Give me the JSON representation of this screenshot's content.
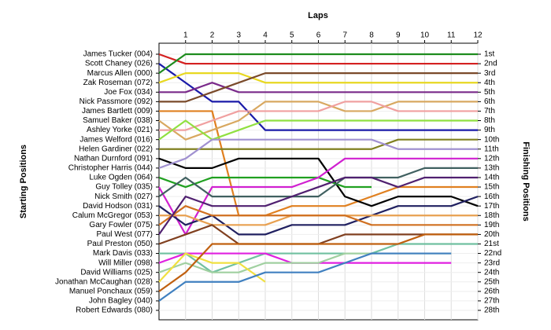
{
  "chart_data": {
    "type": "line",
    "title": "Laps",
    "ylabel": "Starting Positions",
    "y2label": "Finishing Positions",
    "x": [
      0,
      1,
      2,
      3,
      4,
      5,
      6,
      7,
      8,
      9,
      10,
      11,
      12
    ],
    "xlim": [
      0,
      12
    ],
    "xticks": [
      1,
      2,
      3,
      4,
      5,
      6,
      7,
      8,
      9,
      10,
      11,
      12
    ],
    "ylim": [
      1,
      28
    ],
    "grid": true,
    "yticks": [
      {
        "value": 1,
        "label": "1st"
      },
      {
        "value": 2,
        "label": "2nd"
      },
      {
        "value": 3,
        "label": "3rd"
      },
      {
        "value": 4,
        "label": "4th"
      },
      {
        "value": 5,
        "label": "5th"
      },
      {
        "value": 6,
        "label": "6th"
      },
      {
        "value": 7,
        "label": "7th"
      },
      {
        "value": 8,
        "label": "8th"
      },
      {
        "value": 9,
        "label": "9th"
      },
      {
        "value": 10,
        "label": "10th"
      },
      {
        "value": 11,
        "label": "11th"
      },
      {
        "value": 12,
        "label": "12th"
      },
      {
        "value": 13,
        "label": "13th"
      },
      {
        "value": 14,
        "label": "14th"
      },
      {
        "value": 15,
        "label": "15th"
      },
      {
        "value": 16,
        "label": "16th"
      },
      {
        "value": 17,
        "label": "17th"
      },
      {
        "value": 18,
        "label": "18th"
      },
      {
        "value": 19,
        "label": "19th"
      },
      {
        "value": 20,
        "label": "20th"
      },
      {
        "value": 21,
        "label": "21st"
      },
      {
        "value": 22,
        "label": "22nd"
      },
      {
        "value": 23,
        "label": "23rd"
      },
      {
        "value": 24,
        "label": "24th"
      },
      {
        "value": 25,
        "label": "25th"
      },
      {
        "value": 26,
        "label": "26th"
      },
      {
        "value": 27,
        "label": "27th"
      },
      {
        "value": 28,
        "label": "28th"
      }
    ],
    "series": [
      {
        "name": "James Tucker (004)",
        "color": "#d42020",
        "values": [
          1,
          2,
          2,
          2,
          2,
          2,
          2,
          2,
          2,
          2,
          2,
          2,
          2
        ]
      },
      {
        "name": "Scott Chaney (026)",
        "color": "#1a1aa8",
        "values": [
          2,
          4,
          6,
          6,
          9,
          9,
          9,
          9,
          9,
          9,
          9,
          9,
          9
        ]
      },
      {
        "name": "Marcus Allen (000)",
        "color": "#1e8c1e",
        "values": [
          3,
          1,
          1,
          1,
          1,
          1,
          1,
          1,
          1,
          1,
          1,
          1,
          1
        ]
      },
      {
        "name": "Zak Roseman (072)",
        "color": "#e8d820",
        "values": [
          4,
          3,
          3,
          3,
          4,
          4,
          4,
          4,
          4,
          4,
          4,
          4,
          4
        ]
      },
      {
        "name": "Joe Fox (034)",
        "color": "#7a2a8a",
        "values": [
          5,
          5,
          4,
          5,
          5,
          5,
          5,
          5,
          5,
          5,
          5,
          5,
          5
        ]
      },
      {
        "name": "Nick Passmore (092)",
        "color": "#7a4a2a",
        "values": [
          6,
          6,
          5,
          4,
          3,
          3,
          3,
          3,
          3,
          3,
          3,
          3,
          3
        ]
      },
      {
        "name": "James Bartlett (009)",
        "color": "#e08020",
        "values": [
          7,
          7,
          7,
          18,
          18,
          17,
          17,
          17,
          16,
          15,
          15,
          15,
          15
        ]
      },
      {
        "name": "Samuel Baker (038)",
        "color": "#d8a860",
        "values": [
          8,
          10,
          9,
          8,
          6,
          6,
          6,
          7,
          7,
          6,
          6,
          6,
          6
        ]
      },
      {
        "name": "Ashley Yorke (021)",
        "color": "#f0a0a0",
        "values": [
          9,
          9,
          8,
          7,
          7,
          7,
          7,
          6,
          6,
          7,
          7,
          7,
          7
        ]
      },
      {
        "name": "James Welford (016)",
        "color": "#90e040",
        "values": [
          10,
          8,
          10,
          9,
          8,
          8,
          8,
          8,
          8,
          8,
          8,
          8,
          8
        ]
      },
      {
        "name": "Helen Gardiner (022)",
        "color": "#808020",
        "values": [
          11,
          11,
          11,
          11,
          11,
          11,
          11,
          11,
          11,
          10,
          10,
          10,
          10
        ]
      },
      {
        "name": "Nathan Durnford (091)",
        "color": "#000000",
        "values": [
          12,
          13,
          13,
          12,
          12,
          12,
          12,
          16,
          17,
          16,
          16,
          16,
          17
        ]
      },
      {
        "name": "Christopher Harris (044)",
        "color": "#a090d0",
        "values": [
          13,
          12,
          10,
          10,
          10,
          10,
          10,
          10,
          10,
          11,
          11,
          11,
          11
        ]
      },
      {
        "name": "Luke Ogden (064)",
        "color": "#20a020",
        "values": [
          14,
          15,
          14,
          14,
          14,
          14,
          14,
          15,
          15,
          null,
          null,
          null,
          null
        ]
      },
      {
        "name": "Guy Tolley (035)",
        "color": "#d020d0",
        "values": [
          15,
          20,
          15,
          15,
          15,
          15,
          14,
          12,
          12,
          12,
          12,
          12,
          12
        ]
      },
      {
        "name": "Nick Smith (027)",
        "color": "#406060",
        "values": [
          16,
          14,
          16,
          16,
          16,
          16,
          16,
          14,
          14,
          14,
          13,
          13,
          13
        ]
      },
      {
        "name": "David Hodson (031)",
        "color": "#202060",
        "values": [
          17,
          19,
          18,
          20,
          20,
          19,
          19,
          19,
          18,
          17,
          17,
          17,
          16
        ]
      },
      {
        "name": "Calum McGregor (053)",
        "color": "#e8a050",
        "values": [
          18,
          18,
          19,
          19,
          19,
          18,
          18,
          18,
          18,
          18,
          18,
          18,
          18
        ]
      },
      {
        "name": "Gary Fowler (075)",
        "color": "#d07020",
        "values": [
          19,
          17,
          18,
          18,
          18,
          18,
          18,
          18,
          19,
          19,
          19,
          19,
          19
        ]
      },
      {
        "name": "Paul West (077)",
        "color": "#502070",
        "values": [
          20,
          16,
          17,
          17,
          17,
          16,
          15,
          14,
          14,
          15,
          14,
          14,
          14
        ]
      },
      {
        "name": "Paul Preston (050)",
        "color": "#804020",
        "values": [
          21,
          20,
          19,
          21,
          21,
          21,
          21,
          20,
          20,
          20,
          20,
          20,
          20
        ]
      },
      {
        "name": "Mark Davis (033)",
        "color": "#70c0a0",
        "values": [
          22,
          22,
          24,
          23,
          22,
          22,
          22,
          22,
          22,
          21,
          21,
          21,
          21
        ]
      },
      {
        "name": "Will Miller (098)",
        "color": "#e020e0",
        "values": [
          23,
          22,
          22,
          22,
          22,
          23,
          23,
          23,
          23,
          23,
          23,
          23,
          null
        ]
      },
      {
        "name": "David Williams (025)",
        "color": "#a0d0a0",
        "values": [
          24,
          23,
          24,
          24,
          23,
          23,
          23,
          22,
          22,
          22,
          22,
          22,
          null
        ]
      },
      {
        "name": "Jonathan McCaughan (028)",
        "color": "#f0e040",
        "values": [
          25,
          22,
          23,
          23,
          25,
          null,
          null,
          null,
          null,
          null,
          null,
          null,
          null
        ]
      },
      {
        "name": "Manuel Ponchaux (059)",
        "color": "#c06010",
        "values": [
          26,
          24,
          21,
          21,
          21,
          21,
          21,
          21,
          21,
          21,
          20,
          20,
          20
        ]
      },
      {
        "name": "John Bagley (040)",
        "color": "#4080c0",
        "values": [
          27,
          25,
          25,
          25,
          24,
          24,
          24,
          23,
          22,
          22,
          22,
          22,
          null
        ]
      },
      {
        "name": "Robert Edwards (080)",
        "color": "#808080",
        "values": [
          28,
          null,
          null,
          null,
          null,
          null,
          null,
          null,
          null,
          null,
          null,
          null,
          null
        ]
      }
    ]
  }
}
